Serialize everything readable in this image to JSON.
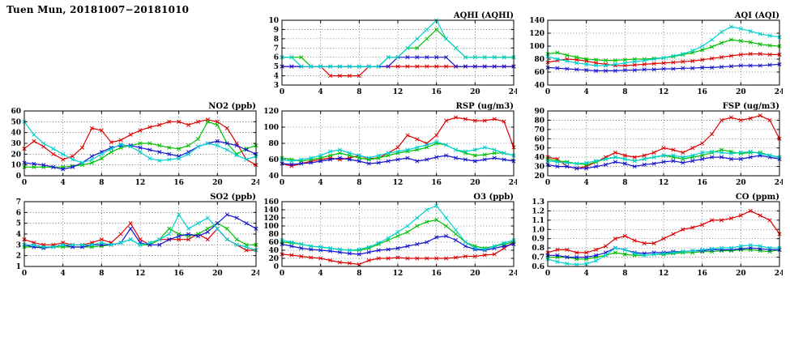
{
  "page_title": "Tuen Mun, 20181007−20181010",
  "colors": {
    "red": "#dd0000",
    "green": "#00c000",
    "blue": "#1515d0",
    "cyan": "#00d0d0"
  },
  "chart_data": [
    {
      "id": "aqhi",
      "type": "line",
      "title": "AQHI (AQHI)",
      "xlim": [
        0,
        24
      ],
      "xticks": [
        0,
        4,
        8,
        12,
        16,
        20,
        24
      ],
      "ylim": [
        3,
        10
      ],
      "yticks": [
        3,
        4,
        5,
        6,
        7,
        8,
        9,
        10
      ],
      "ytick_decimals": 0,
      "x_start": 0,
      "x_step": 1,
      "series": [
        {
          "color": "red",
          "values": [
            5,
            5,
            5,
            5,
            5,
            4,
            4,
            4,
            4,
            5,
            5,
            5,
            5,
            5,
            5,
            5,
            5,
            5,
            5,
            5,
            5,
            5,
            5,
            5,
            5
          ]
        },
        {
          "color": "green",
          "values": [
            6,
            6,
            6,
            5,
            5,
            5,
            5,
            5,
            5,
            5,
            5,
            6,
            6,
            7,
            7,
            8,
            9,
            8,
            7,
            6,
            6,
            6,
            6,
            6,
            6
          ]
        },
        {
          "color": "blue",
          "values": [
            5,
            5,
            5,
            5,
            5,
            5,
            5,
            5,
            5,
            5,
            5,
            5,
            6,
            6,
            6,
            6,
            6,
            6,
            5,
            5,
            5,
            5,
            5,
            5,
            5
          ]
        },
        {
          "color": "cyan",
          "values": [
            6,
            6,
            5,
            5,
            5,
            5,
            5,
            5,
            5,
            5,
            5,
            6,
            6,
            7,
            8,
            9,
            10,
            8,
            7,
            6,
            6,
            6,
            6,
            6,
            6
          ]
        }
      ]
    },
    {
      "id": "aqi",
      "type": "line",
      "title": "AQI (AQI)",
      "xlim": [
        0,
        24
      ],
      "xticks": [
        0,
        4,
        8,
        12,
        16,
        20,
        24
      ],
      "ylim": [
        40,
        140
      ],
      "yticks": [
        40,
        60,
        80,
        100,
        120,
        140
      ],
      "ytick_decimals": 0,
      "x_start": 0,
      "x_step": 1,
      "series": [
        {
          "color": "red",
          "values": [
            75,
            78,
            80,
            79,
            77,
            74,
            72,
            70,
            70,
            71,
            72,
            73,
            74,
            75,
            76,
            77,
            79,
            81,
            83,
            85,
            87,
            88,
            88,
            87,
            87
          ]
        },
        {
          "color": "green",
          "values": [
            88,
            90,
            86,
            83,
            80,
            79,
            78,
            78,
            79,
            80,
            80,
            81,
            82,
            84,
            87,
            90,
            94,
            99,
            105,
            110,
            108,
            106,
            103,
            101,
            100
          ]
        },
        {
          "color": "blue",
          "values": [
            67,
            66,
            65,
            64,
            63,
            62,
            62,
            62,
            63,
            63,
            64,
            64,
            65,
            65,
            66,
            66,
            67,
            67,
            68,
            69,
            70,
            70,
            70,
            71,
            72
          ]
        },
        {
          "color": "cyan",
          "values": [
            84,
            80,
            77,
            74,
            72,
            70,
            70,
            72,
            74,
            76,
            78,
            80,
            82,
            85,
            88,
            93,
            100,
            110,
            122,
            130,
            127,
            123,
            119,
            116,
            114
          ]
        }
      ]
    },
    {
      "id": "no2",
      "type": "line",
      "title": "NO2 (ppb)",
      "xlim": [
        0,
        24
      ],
      "xticks": [
        0,
        4,
        8,
        12,
        16,
        20,
        24
      ],
      "ylim": [
        0,
        60
      ],
      "yticks": [
        0,
        10,
        20,
        30,
        40,
        50,
        60
      ],
      "ytick_decimals": 0,
      "x_start": 0,
      "x_step": 1,
      "series": [
        {
          "color": "red",
          "values": [
            25,
            32,
            27,
            20,
            15,
            18,
            26,
            44,
            42,
            31,
            33,
            38,
            42,
            45,
            47,
            50,
            50,
            47,
            50,
            52,
            50,
            44,
            30,
            15,
            10
          ]
        },
        {
          "color": "green",
          "values": [
            8,
            8,
            8,
            8,
            8,
            9,
            10,
            12,
            16,
            22,
            26,
            28,
            30,
            30,
            28,
            26,
            25,
            28,
            34,
            50,
            47,
            30,
            20,
            25,
            28
          ]
        },
        {
          "color": "blue",
          "values": [
            12,
            11,
            10,
            8,
            6,
            8,
            12,
            18,
            22,
            26,
            28,
            28,
            26,
            24,
            22,
            20,
            18,
            22,
            27,
            30,
            32,
            30,
            28,
            24,
            20
          ]
        },
        {
          "color": "cyan",
          "values": [
            50,
            38,
            30,
            25,
            20,
            15,
            12,
            15,
            20,
            25,
            29,
            27,
            22,
            16,
            14,
            15,
            16,
            20,
            27,
            30,
            28,
            24,
            19,
            15,
            18
          ]
        }
      ]
    },
    {
      "id": "rsp",
      "type": "line",
      "title": "RSP (ug/m3)",
      "xlim": [
        0,
        24
      ],
      "xticks": [
        0,
        4,
        8,
        12,
        16,
        20,
        24
      ],
      "ylim": [
        40,
        120
      ],
      "yticks": [
        40,
        60,
        80,
        100,
        120
      ],
      "ytick_decimals": 0,
      "x_start": 0,
      "x_step": 1,
      "series": [
        {
          "color": "red",
          "values": [
            55,
            52,
            55,
            58,
            60,
            62,
            60,
            62,
            65,
            61,
            62,
            68,
            75,
            90,
            85,
            80,
            90,
            108,
            112,
            110,
            108,
            108,
            110,
            107,
            75
          ]
        },
        {
          "color": "green",
          "values": [
            62,
            60,
            58,
            60,
            62,
            65,
            68,
            65,
            62,
            60,
            62,
            65,
            68,
            70,
            72,
            75,
            80,
            78,
            72,
            68,
            65,
            66,
            68,
            68,
            65
          ]
        },
        {
          "color": "blue",
          "values": [
            55,
            54,
            55,
            56,
            58,
            60,
            62,
            60,
            58,
            55,
            56,
            58,
            60,
            62,
            58,
            60,
            63,
            65,
            62,
            60,
            58,
            60,
            62,
            60,
            58
          ]
        },
        {
          "color": "cyan",
          "values": [
            60,
            58,
            60,
            62,
            65,
            70,
            72,
            68,
            65,
            62,
            65,
            68,
            70,
            72,
            75,
            78,
            82,
            78,
            72,
            70,
            72,
            75,
            72,
            68,
            65
          ]
        }
      ]
    },
    {
      "id": "fsp",
      "type": "line",
      "title": "FSP (ug/m3)",
      "xlim": [
        0,
        24
      ],
      "xticks": [
        0,
        4,
        8,
        12,
        16,
        20,
        24
      ],
      "ylim": [
        20,
        90
      ],
      "yticks": [
        20,
        30,
        40,
        50,
        60,
        70,
        80,
        90
      ],
      "ytick_decimals": 0,
      "x_start": 0,
      "x_step": 1,
      "series": [
        {
          "color": "red",
          "values": [
            40,
            38,
            30,
            28,
            30,
            35,
            40,
            45,
            42,
            40,
            42,
            45,
            50,
            48,
            45,
            50,
            55,
            65,
            80,
            83,
            80,
            82,
            85,
            80,
            60
          ]
        },
        {
          "color": "green",
          "values": [
            38,
            36,
            35,
            33,
            32,
            35,
            38,
            40,
            38,
            36,
            38,
            40,
            42,
            40,
            38,
            40,
            42,
            45,
            48,
            46,
            44,
            45,
            45,
            42,
            40
          ]
        },
        {
          "color": "blue",
          "values": [
            32,
            30,
            30,
            28,
            28,
            30,
            32,
            35,
            33,
            30,
            32,
            33,
            35,
            36,
            34,
            36,
            38,
            40,
            40,
            38,
            38,
            40,
            42,
            40,
            38
          ]
        },
        {
          "color": "cyan",
          "values": [
            36,
            35,
            34,
            33,
            34,
            36,
            38,
            40,
            38,
            36,
            38,
            40,
            42,
            42,
            40,
            42,
            45,
            46,
            45,
            44,
            45,
            46,
            44,
            42,
            40
          ]
        }
      ]
    },
    {
      "id": "so2",
      "type": "line",
      "title": "SO2 (ppb)",
      "xlim": [
        0,
        24
      ],
      "xticks": [
        0,
        4,
        8,
        12,
        16,
        20,
        24
      ],
      "ylim": [
        1,
        7
      ],
      "yticks": [
        1,
        2,
        3,
        4,
        5,
        6,
        7
      ],
      "ytick_decimals": 0,
      "x_start": 0,
      "x_step": 1,
      "series": [
        {
          "color": "red",
          "values": [
            3.5,
            3.2,
            3.0,
            3.0,
            3.2,
            3.0,
            3.0,
            3.2,
            3.5,
            3.2,
            4.0,
            5.0,
            3.5,
            3.0,
            3.5,
            3.5,
            3.5,
            3.5,
            4.0,
            3.5,
            4.5,
            3.5,
            3.0,
            2.5,
            2.5
          ]
        },
        {
          "color": "green",
          "values": [
            2.8,
            2.8,
            2.8,
            2.8,
            2.8,
            2.8,
            2.8,
            2.8,
            2.9,
            3.0,
            3.2,
            3.5,
            3.0,
            3.0,
            3.5,
            4.5,
            4.0,
            3.8,
            4.0,
            4.5,
            5.0,
            4.5,
            3.5,
            3.0,
            3.0
          ]
        },
        {
          "color": "blue",
          "values": [
            3.0,
            2.8,
            2.7,
            2.8,
            3.0,
            2.8,
            2.8,
            3.0,
            3.0,
            3.0,
            3.2,
            4.5,
            3.2,
            3.0,
            3.0,
            3.5,
            3.8,
            4.0,
            3.8,
            4.2,
            5.0,
            5.8,
            5.5,
            5.0,
            4.5
          ]
        },
        {
          "color": "cyan",
          "values": [
            3.0,
            3.0,
            2.8,
            2.8,
            3.0,
            3.0,
            3.0,
            3.0,
            3.2,
            3.0,
            3.2,
            3.5,
            3.0,
            3.2,
            3.5,
            4.0,
            5.8,
            4.5,
            5.0,
            5.5,
            4.5,
            3.5,
            3.0,
            2.8,
            2.5
          ]
        }
      ]
    },
    {
      "id": "o3",
      "type": "line",
      "title": "O3 (ppb)",
      "xlim": [
        0,
        24
      ],
      "xticks": [
        0,
        4,
        8,
        12,
        16,
        20,
        24
      ],
      "ylim": [
        0,
        160
      ],
      "yticks": [
        0,
        20,
        40,
        60,
        80,
        100,
        120,
        140,
        160
      ],
      "ytick_decimals": 0,
      "x_start": 0,
      "x_step": 1,
      "series": [
        {
          "color": "red",
          "values": [
            30,
            28,
            25,
            22,
            20,
            15,
            10,
            8,
            5,
            15,
            20,
            20,
            22,
            20,
            20,
            20,
            20,
            20,
            22,
            25,
            25,
            28,
            30,
            45,
            60
          ]
        },
        {
          "color": "green",
          "values": [
            60,
            58,
            55,
            50,
            48,
            45,
            42,
            40,
            40,
            45,
            55,
            65,
            75,
            85,
            100,
            110,
            115,
            100,
            80,
            60,
            50,
            45,
            50,
            55,
            60
          ]
        },
        {
          "color": "blue",
          "values": [
            55,
            50,
            45,
            42,
            40,
            38,
            35,
            32,
            30,
            35,
            40,
            42,
            45,
            50,
            55,
            60,
            72,
            75,
            65,
            50,
            42,
            40,
            45,
            50,
            55
          ]
        },
        {
          "color": "cyan",
          "values": [
            65,
            60,
            55,
            50,
            48,
            45,
            42,
            40,
            42,
            48,
            58,
            70,
            85,
            100,
            120,
            140,
            150,
            120,
            90,
            60,
            45,
            42,
            50,
            58,
            65
          ]
        }
      ]
    },
    {
      "id": "co",
      "type": "line",
      "title": "CO (ppm)",
      "xlim": [
        0,
        24
      ],
      "xticks": [
        0,
        4,
        8,
        12,
        16,
        20,
        24
      ],
      "ylim": [
        0.6,
        1.3
      ],
      "yticks": [
        0.6,
        0.7,
        0.8,
        0.9,
        1.0,
        1.1,
        1.2,
        1.3
      ],
      "ytick_decimals": 1,
      "x_start": 0,
      "x_step": 1,
      "series": [
        {
          "color": "red",
          "values": [
            0.75,
            0.78,
            0.78,
            0.75,
            0.75,
            0.78,
            0.82,
            0.9,
            0.93,
            0.88,
            0.85,
            0.85,
            0.9,
            0.95,
            1.0,
            1.02,
            1.05,
            1.1,
            1.1,
            1.12,
            1.15,
            1.2,
            1.15,
            1.1,
            0.95
          ]
        },
        {
          "color": "green",
          "values": [
            0.7,
            0.7,
            0.7,
            0.68,
            0.68,
            0.7,
            0.72,
            0.75,
            0.73,
            0.72,
            0.72,
            0.73,
            0.73,
            0.74,
            0.75,
            0.75,
            0.76,
            0.76,
            0.77,
            0.77,
            0.78,
            0.78,
            0.77,
            0.76,
            0.78
          ]
        },
        {
          "color": "blue",
          "values": [
            0.72,
            0.72,
            0.7,
            0.7,
            0.7,
            0.72,
            0.75,
            0.8,
            0.78,
            0.75,
            0.74,
            0.75,
            0.75,
            0.76,
            0.76,
            0.77,
            0.77,
            0.78,
            0.78,
            0.78,
            0.79,
            0.8,
            0.79,
            0.78,
            0.78
          ]
        },
        {
          "color": "cyan",
          "values": [
            0.68,
            0.65,
            0.63,
            0.62,
            0.63,
            0.66,
            0.72,
            0.8,
            0.78,
            0.74,
            0.72,
            0.73,
            0.74,
            0.75,
            0.76,
            0.77,
            0.78,
            0.79,
            0.8,
            0.8,
            0.82,
            0.83,
            0.82,
            0.8,
            0.8
          ]
        }
      ]
    }
  ]
}
